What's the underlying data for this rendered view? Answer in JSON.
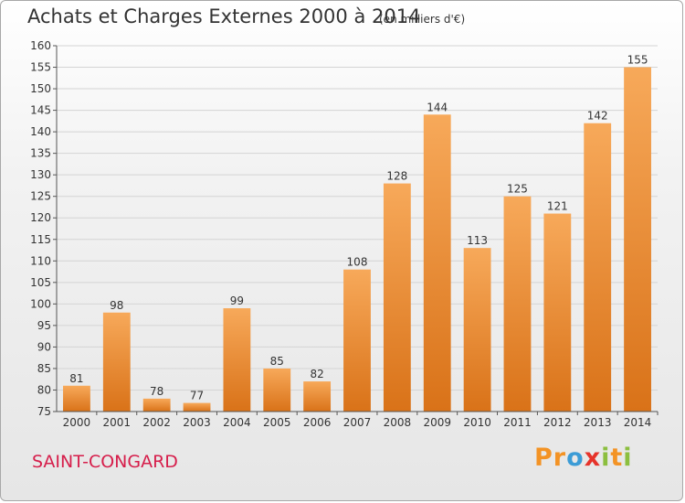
{
  "header": {
    "title": "Achats et Charges Externes 2000 à 2014",
    "unit": "(en milliers d'€)"
  },
  "footer": {
    "commune": "SAINT-CONGARD",
    "logo_letters": [
      "P",
      "r",
      "o",
      "x",
      "i",
      "t",
      "i"
    ]
  },
  "colors": {
    "bar_light": "#f7a95a",
    "bar_dark": "#d97218",
    "commune_text": "#d61e4b",
    "logo": [
      "#f39325",
      "#f39325",
      "#3c9cd6",
      "#e6332a",
      "#8cbf3f",
      "#f39325",
      "#8cbf3f"
    ]
  },
  "chart_data": {
    "type": "bar",
    "title": "Achats et Charges Externes 2000 à 2014",
    "subtitle": "(en milliers d'€)",
    "xlabel": "",
    "ylabel": "",
    "categories": [
      "2000",
      "2001",
      "2002",
      "2003",
      "2004",
      "2005",
      "2006",
      "2007",
      "2008",
      "2009",
      "2010",
      "2011",
      "2012",
      "2013",
      "2014"
    ],
    "values": [
      81,
      98,
      78,
      77,
      99,
      85,
      82,
      108,
      128,
      144,
      113,
      125,
      121,
      142,
      155
    ],
    "ylim": [
      75,
      160
    ],
    "yticks": [
      75,
      80,
      85,
      90,
      95,
      100,
      105,
      110,
      115,
      120,
      125,
      130,
      135,
      140,
      145,
      150,
      155,
      160
    ],
    "grid": true,
    "legend": "none"
  }
}
